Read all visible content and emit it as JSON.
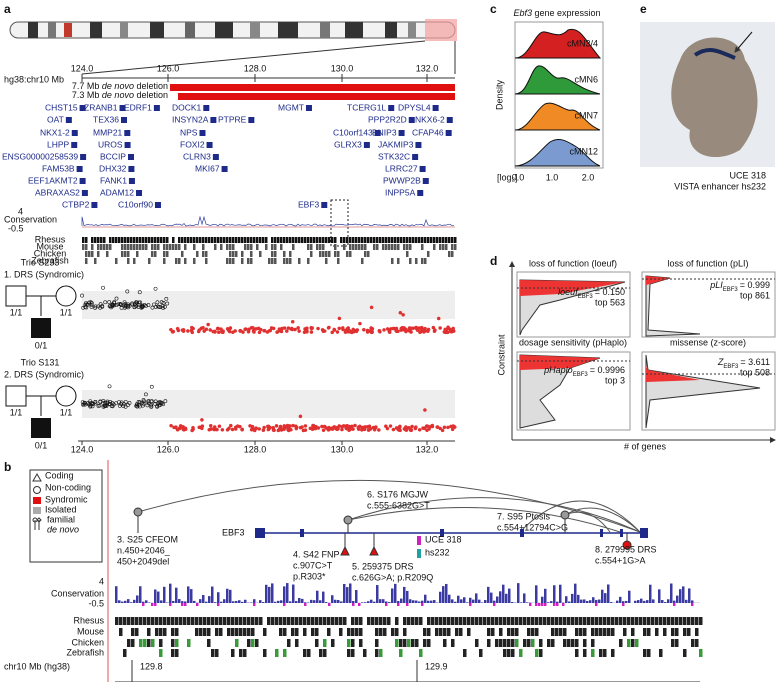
{
  "panel_a": {
    "label": "a",
    "axis_label": "hg38:chr10 Mb",
    "ticks": [
      "124.0",
      "126.0",
      "128.0",
      "130.0",
      "132.0"
    ],
    "deletions": [
      {
        "size": "7.7 Mb",
        "italic": "de novo",
        "rest": "deletion"
      },
      {
        "size": "7.3 Mb",
        "italic": "de novo",
        "rest": "deletion"
      }
    ],
    "genes": [
      "CHST15",
      "ZRANB1",
      "EDRF1",
      "DOCK1",
      "MGMT",
      "TCERG1L",
      "DPYSL4",
      "OAT",
      "TEX36",
      "INSYN2A",
      "PTPRE",
      "PPP2R2D",
      "NKX6-2",
      "NKX1-2",
      "MMP21",
      "NPS",
      "C10orf143",
      "BNIP3",
      "CFAP46",
      "LHPP",
      "UROS",
      "FOXI2",
      "GLRX3",
      "JAKMIP3",
      "ENSG00000258539",
      "BCCIP",
      "CLRN3",
      "STK32C",
      "FAM53B",
      "DHX32",
      "MKI67",
      "LRRC27",
      "EEF1AKMT2",
      "FANK1",
      "PWWP2B",
      "ABRAXAS2",
      "ADAM12",
      "INPP5A",
      "CTBP2",
      "C10orf90",
      "EBF3"
    ],
    "conservation": {
      "label": "Conservation",
      "max": "4",
      "min": "-0.5"
    },
    "species": [
      "Rhesus",
      "Mouse",
      "Chicken",
      "Zebrafish"
    ],
    "trios": [
      {
        "id": "Trio S233",
        "desc": "1. DRS (Syndromic)",
        "father": "1/1",
        "mother": "1/1",
        "child": "0/1"
      },
      {
        "id": "Trio S131",
        "desc": "2. DRS (Syndromic)",
        "father": "1/1",
        "mother": "1/1",
        "child": "0/1"
      }
    ],
    "plot_ticks": [
      "124.0",
      "126.0",
      "128.0",
      "130.0",
      "132.0"
    ]
  },
  "panel_b": {
    "label": "b",
    "legend": [
      "Coding",
      "Non-coding",
      "Syndromic",
      "Isolated",
      "familial",
      "de novo"
    ],
    "gene": "EBF3",
    "variants": [
      [
        "3. S25 CFEOM",
        "n.450+2046_",
        "450+2049del"
      ],
      [
        "6. S176 MGJW",
        "c.555-6382G>T"
      ],
      [
        "7. S95 Ptosis",
        "c.554+12794C>G"
      ],
      [
        "4. S42 FNP",
        "c.907C>T",
        "p.R303*"
      ],
      [
        "5. 259375 DRS",
        "c.626G>A; p.R209Q"
      ],
      [
        "8. 279995 DRS",
        "c.554+1G>A"
      ]
    ],
    "elements": [
      "UCE 318",
      "hs232"
    ],
    "conservation": {
      "label": "Conservation",
      "max": "4",
      "min": "-0.5"
    },
    "species": [
      "Rhesus",
      "Mouse",
      "Chicken",
      "Zebrafish"
    ],
    "axis_label": "chr10 Mb (hg38)",
    "ticks": [
      "129.8",
      "129.9"
    ]
  },
  "panel_c": {
    "label": "c",
    "title_gene": "Ebf3",
    "title_rest": "gene expression",
    "y_label": "Density",
    "cell_types": [
      "cMN3/4",
      "cMN6",
      "cMN7",
      "cMN12"
    ],
    "ticks": [
      "0.0",
      "1.0",
      "2.0"
    ],
    "unit": "[log₂]"
  },
  "panel_d": {
    "label": "d",
    "y_label": "Constraint",
    "x_label": "# of genes",
    "plots": [
      {
        "title": "loss of function (loeuf)",
        "metric": "loeuf",
        "sub": "EBF3",
        "value": "= 0.150",
        "rank": "top 563"
      },
      {
        "title": "loss of function (pLI)",
        "metric": "pLI",
        "sub": "EBF3",
        "value": "= 0.999",
        "rank": "top 861"
      },
      {
        "title": "dosage sensitivity (pHaplo)",
        "metric": "pHaplo",
        "sub": "EBF3",
        "value": "= 0.9996",
        "rank": "top 3"
      },
      {
        "title": "missense (z-score)",
        "metric": "Z",
        "sub": "EBF3",
        "value": "= 3.611",
        "rank": "top 508"
      }
    ]
  },
  "panel_e": {
    "label": "e",
    "element": "UCE 318",
    "enhancer": "VISTA enhancer hs232"
  }
}
